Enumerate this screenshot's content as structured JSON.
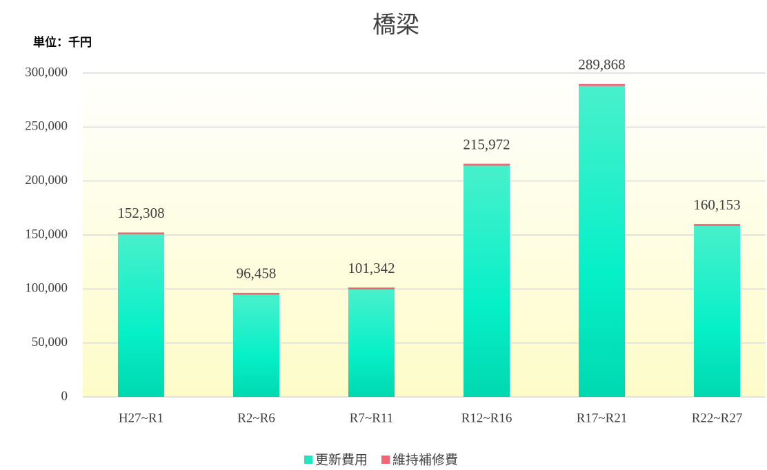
{
  "chart_data": {
    "type": "stacked_bar",
    "title": "橋梁",
    "unit_label": "単位：千円",
    "categories": [
      "H27~R1",
      "R2~R6",
      "R7~R11",
      "R12~R16",
      "R17~R21",
      "R22~R27"
    ],
    "series": [
      {
        "name": "更新費用",
        "color": "#1ee8c2",
        "values": [
          150508,
          94658,
          99542,
          214172,
          288068,
          158353
        ]
      },
      {
        "name": "維持補修費",
        "color": "#f06674",
        "values": [
          1800,
          1800,
          1800,
          1800,
          1800,
          1800
        ]
      }
    ],
    "totals": {
      "values": [
        152308,
        96458,
        101342,
        215972,
        289868,
        160153
      ],
      "value_labels": [
        "152,308",
        "96,458",
        "101,342",
        "215,972",
        "289,868",
        "160,153"
      ]
    },
    "ylim": [
      0,
      300000
    ],
    "yticks": [
      0,
      {
        "value": 50000,
        "label": "50,000"
      },
      {
        "value": 100000,
        "label": "100,000"
      },
      {
        "value": 150000,
        "label": "150,000"
      },
      {
        "value": 200000,
        "label": "200,000"
      },
      {
        "value": 250000,
        "label": "250,000"
      },
      {
        "value": 300000,
        "label": "300,000"
      }
    ],
    "grid": true,
    "legend": "bottom"
  }
}
